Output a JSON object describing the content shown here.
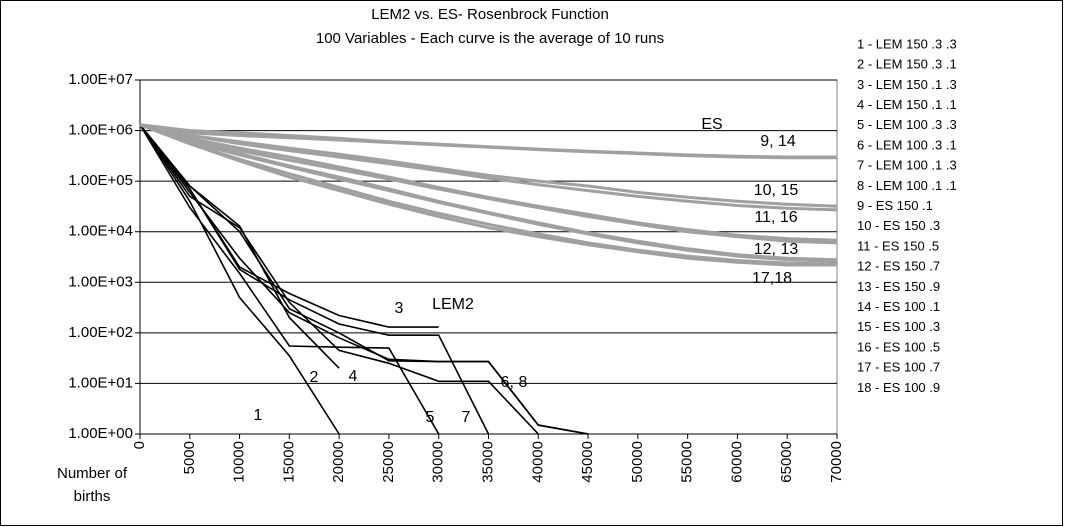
{
  "chart_data": {
    "type": "line",
    "title": "LEM2 vs. ES- Rosenbrock Function",
    "subtitle": "100 Variables - Each curve is the average of 10 runs",
    "x_label": "Number of births",
    "x": [
      0,
      5000,
      10000,
      15000,
      20000,
      25000,
      30000,
      35000,
      40000,
      45000,
      50000,
      55000,
      60000,
      65000,
      70000
    ],
    "xlim": [
      0,
      70000
    ],
    "xticks": [
      0,
      5000,
      10000,
      15000,
      20000,
      25000,
      30000,
      35000,
      40000,
      45000,
      50000,
      55000,
      60000,
      65000,
      70000
    ],
    "log_y": true,
    "ylim": [
      1,
      10000000
    ],
    "yticks": [
      {
        "value": 1,
        "label": "1.00E+00"
      },
      {
        "value": 10,
        "label": "1.00E+01"
      },
      {
        "value": 100,
        "label": "1.00E+02"
      },
      {
        "value": 1000,
        "label": "1.00E+03"
      },
      {
        "value": 10000,
        "label": "1.00E+04"
      },
      {
        "value": 100000,
        "label": "1.00E+05"
      },
      {
        "value": 1000000,
        "label": "1.00E+06"
      },
      {
        "value": 10000000,
        "label": "1.00E+07"
      }
    ],
    "grid": true,
    "legend": "right",
    "annotations": [
      "ES",
      "LEM2",
      "9, 14",
      "10, 15",
      "11, 16",
      "12, 13",
      "17,18",
      "1",
      "2",
      "3",
      "4",
      "5",
      "7",
      "6, 8"
    ],
    "series": [
      {
        "name": "1 -  LEM 150 .3 .3",
        "color": "#000000",
        "values": [
          1300000,
          40000,
          500,
          35,
          1,
          null,
          null,
          null,
          null,
          null,
          null,
          null,
          null,
          null,
          null
        ]
      },
      {
        "name": "2 -  LEM 150 .3 .1",
        "color": "#000000",
        "values": [
          1300000,
          80000,
          13000,
          200,
          20,
          null,
          null,
          null,
          null,
          null,
          null,
          null,
          null,
          null,
          null
        ]
      },
      {
        "name": "3 - LEM 150 .1 .3",
        "color": "#000000",
        "values": [
          1300000,
          70000,
          2000,
          600,
          220,
          130,
          130,
          null,
          null,
          null,
          null,
          null,
          null,
          null,
          null
        ]
      },
      {
        "name": "4 - LEM 150 .1 .1",
        "color": "#000000",
        "values": [
          1300000,
          50000,
          12000,
          400,
          45,
          25,
          11,
          11,
          1,
          null,
          null,
          null,
          null,
          null,
          null
        ]
      },
      {
        "name": "5 - LEM 100 .3 .3",
        "color": "#000000",
        "values": [
          1300000,
          30000,
          1500,
          55,
          52,
          50,
          1,
          null,
          null,
          null,
          null,
          null,
          null,
          null,
          null
        ]
      },
      {
        "name": "6 - LEM 100 .3 .1",
        "color": "#000000",
        "values": [
          1300000,
          80000,
          10000,
          300,
          100,
          28,
          27,
          27,
          1.5,
          1,
          null,
          null,
          null,
          null,
          null
        ]
      },
      {
        "name": "7 - LEM 100 .1 .3",
        "color": "#000000",
        "values": [
          1300000,
          70000,
          1800,
          450,
          150,
          90,
          90,
          1,
          null,
          null,
          null,
          null,
          null,
          null,
          null
        ]
      },
      {
        "name": "8 - LEM 100 .1 .1",
        "color": "#000000",
        "values": [
          1300000,
          60000,
          3000,
          250,
          80,
          30,
          27,
          27,
          1.5,
          1,
          null,
          null,
          null,
          null,
          null
        ]
      },
      {
        "name": "9 - ES 150 .1",
        "color": "#a0a0a0",
        "values": [
          1300000,
          1000000,
          900000,
          800000,
          700000,
          600000,
          540000,
          480000,
          430000,
          390000,
          360000,
          330000,
          310000,
          300000,
          300000
        ]
      },
      {
        "name": "10 - ES 150 .3",
        "color": "#a0a0a0",
        "values": [
          1300000,
          800000,
          600000,
          450000,
          340000,
          250000,
          180000,
          130000,
          100000,
          80000,
          60000,
          48000,
          40000,
          35000,
          32000
        ]
      },
      {
        "name": "11 - ES 150 .5",
        "color": "#a0a0a0",
        "values": [
          1300000,
          700000,
          450000,
          300000,
          190000,
          120000,
          75000,
          48000,
          32000,
          22000,
          15000,
          11000,
          8500,
          7300,
          6800
        ]
      },
      {
        "name": "12 - ES 150 .7",
        "color": "#a0a0a0",
        "values": [
          1300000,
          600000,
          350000,
          200000,
          120000,
          70000,
          40000,
          24000,
          15000,
          9500,
          6500,
          4600,
          3500,
          3000,
          2800
        ]
      },
      {
        "name": "13 - ES 150 .9",
        "color": "#a0a0a0",
        "values": [
          1300000,
          600000,
          330000,
          190000,
          110000,
          65000,
          38000,
          23000,
          14000,
          9000,
          6000,
          4300,
          3300,
          2800,
          2600
        ]
      },
      {
        "name": "14 - ES 100 .1",
        "color": "#a0a0a0",
        "values": [
          1300000,
          900000,
          800000,
          720000,
          650000,
          580000,
          520000,
          470000,
          420000,
          380000,
          350000,
          320000,
          300000,
          290000,
          290000
        ]
      },
      {
        "name": "15 - ES 100 .3",
        "color": "#a0a0a0",
        "values": [
          1300000,
          800000,
          550000,
          400000,
          300000,
          220000,
          160000,
          115000,
          85000,
          65000,
          50000,
          40000,
          33000,
          29000,
          27000
        ]
      },
      {
        "name": "16 - ES 100 .5",
        "color": "#a0a0a0",
        "values": [
          1300000,
          650000,
          400000,
          260000,
          170000,
          110000,
          70000,
          45000,
          30000,
          20000,
          14000,
          10000,
          8000,
          6500,
          6000
        ]
      },
      {
        "name": "17 - ES 100 .7",
        "color": "#a0a0a0",
        "values": [
          1300000,
          550000,
          270000,
          140000,
          75000,
          40000,
          23000,
          14000,
          9000,
          6000,
          4300,
          3300,
          2700,
          2400,
          2300
        ]
      },
      {
        "name": "18 - ES 100 .9",
        "color": "#a0a0a0",
        "values": [
          1300000,
          550000,
          250000,
          120000,
          65000,
          35000,
          20000,
          12000,
          8000,
          5500,
          4000,
          3000,
          2500,
          2200,
          2200
        ]
      }
    ]
  }
}
